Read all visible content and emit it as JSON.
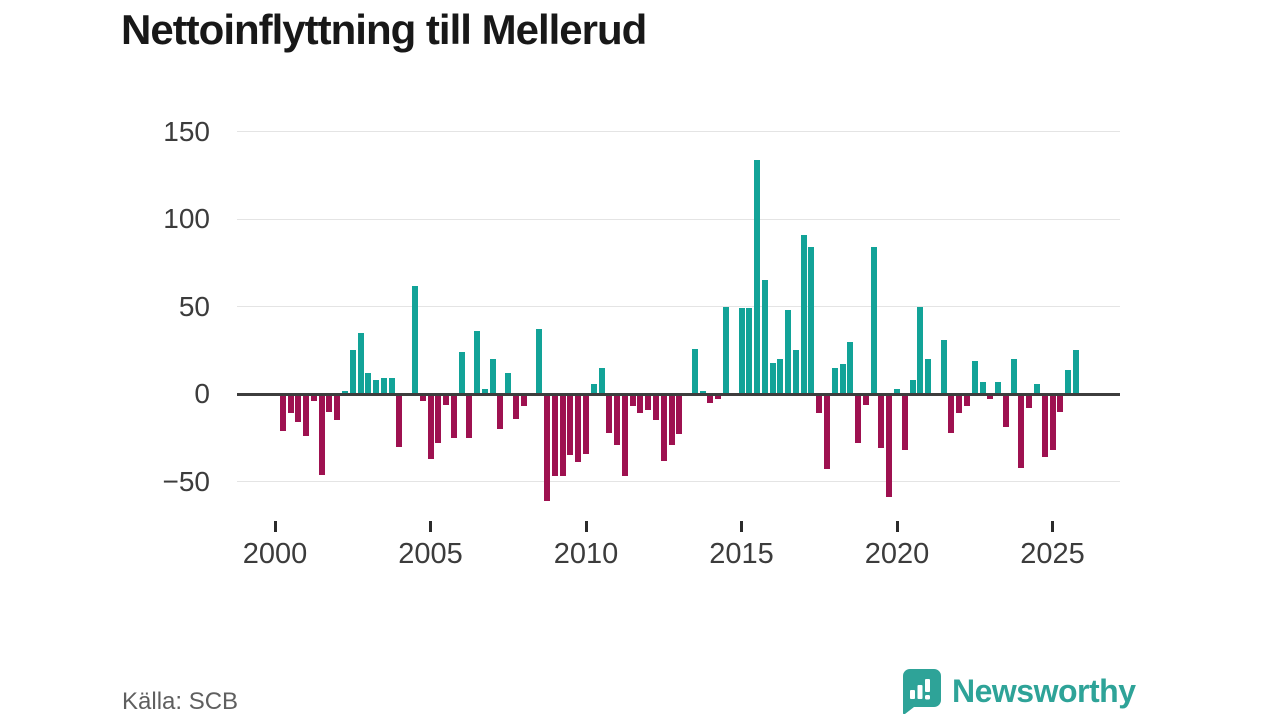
{
  "title": "Nettoinflyttning till Mellerud",
  "footer": {
    "source_label": "Källa: SCB",
    "logo_text": "Newsworthy"
  },
  "colors": {
    "positive": "#12a398",
    "negative": "#9e1150",
    "zero_line": "#3d3d3d",
    "gridline": "#e4e4e4",
    "axis_text": "#3c3c3c",
    "title_text": "#181818",
    "source_text": "#5f5f5f",
    "logo_teal": "#2ea398"
  },
  "chart_data": {
    "type": "bar",
    "title": "Nettoinflyttning till Mellerud",
    "xlabel": "",
    "ylabel": "",
    "frequency": "quarterly",
    "start_quarter": "2000Q1",
    "end_quarter": "2025Q4",
    "x_tick_labels": [
      "2000",
      "2005",
      "2010",
      "2015",
      "2020",
      "2025"
    ],
    "x_tick_indices": [
      0,
      20,
      40,
      60,
      80,
      100
    ],
    "y_ticks": [
      150,
      100,
      50,
      0,
      -50
    ],
    "y_tick_labels": [
      "150",
      "100",
      "50",
      "0",
      "−50"
    ],
    "ylim": [
      -65,
      160
    ],
    "grid": "horizontal",
    "legend": "none",
    "series": [
      {
        "name": "Nettoinflyttning per kvartal",
        "values": [
          0,
          -21,
          -11,
          -16,
          -24,
          -4,
          -46,
          -10,
          -15,
          2,
          25,
          35,
          12,
          8,
          9,
          9,
          -30,
          0,
          62,
          -4,
          -37,
          -28,
          -6,
          -25,
          24,
          -25,
          36,
          3,
          20,
          -20,
          12,
          -14,
          -7,
          0,
          37,
          -61,
          -47,
          -47,
          -35,
          -39,
          -34,
          6,
          15,
          -22,
          -29,
          -47,
          -7,
          -11,
          -9,
          -15,
          -38,
          -29,
          -23,
          0,
          26,
          2,
          -5,
          -3,
          50,
          -1,
          49,
          49,
          134,
          65,
          18,
          20,
          48,
          25,
          91,
          84,
          -11,
          -43,
          15,
          17,
          30,
          -28,
          -6,
          84,
          -31,
          -59,
          3,
          -32,
          8,
          50,
          20,
          0,
          31,
          -22,
          -11,
          -7,
          19,
          7,
          -3,
          7,
          -19,
          20,
          -42,
          -8,
          6,
          -36,
          -32,
          -10,
          14,
          25
        ]
      }
    ]
  }
}
